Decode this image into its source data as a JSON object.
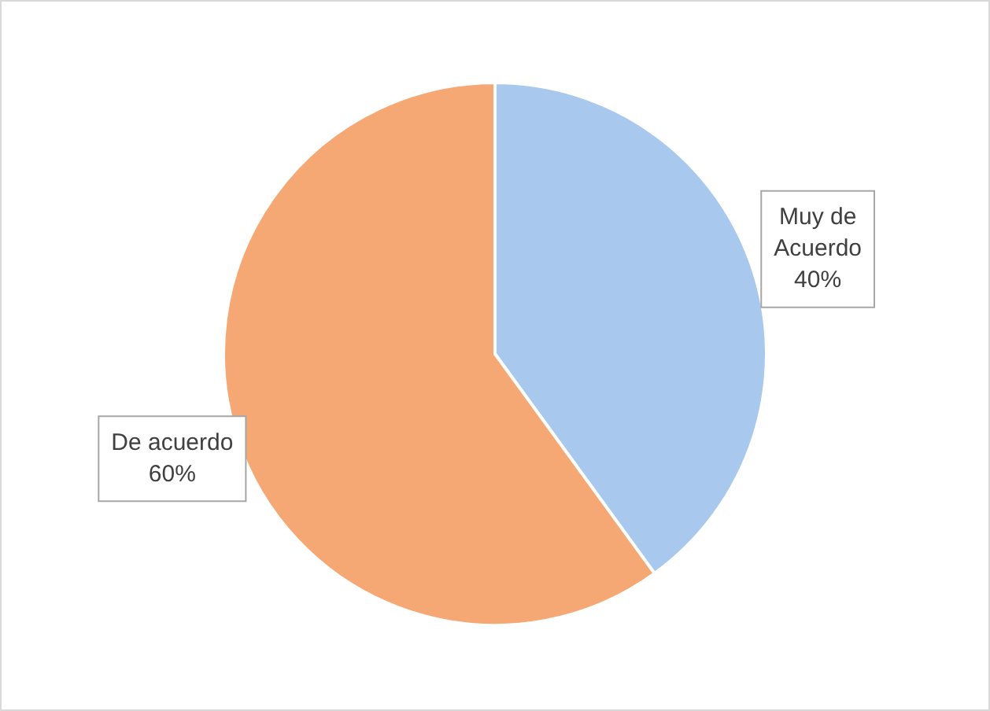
{
  "chart_data": {
    "type": "pie",
    "categories": [
      "Muy de Acuerdo",
      "De acuerdo"
    ],
    "values": [
      40,
      60
    ],
    "colors": [
      "#a8c8ee",
      "#f5a873"
    ],
    "value_labels": [
      "40%",
      "60%"
    ],
    "legend": false
  }
}
